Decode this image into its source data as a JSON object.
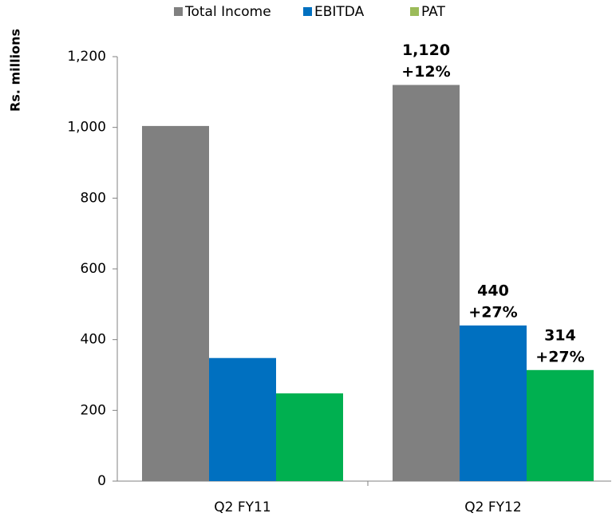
{
  "chart_data": {
    "type": "bar",
    "y_axis_label": "Rs. millions",
    "categories": [
      "Q2 FY11",
      "Q2 FY12"
    ],
    "series": [
      {
        "name": "Total Income",
        "color": "#808080",
        "values": [
          1004,
          1120
        ],
        "value_labels": [
          null,
          "1,120"
        ],
        "change_labels": [
          null,
          "+12%"
        ]
      },
      {
        "name": "EBITDA",
        "color": "#0070c0",
        "values": [
          348,
          440
        ],
        "value_labels": [
          null,
          "440"
        ],
        "change_labels": [
          null,
          "+27%"
        ]
      },
      {
        "name": "PAT",
        "color": "#00b050",
        "legend_color": "#9bbb59",
        "values": [
          248,
          314
        ],
        "value_labels": [
          null,
          "314"
        ],
        "change_labels": [
          null,
          "+27%"
        ]
      }
    ],
    "ylim": [
      0,
      1200
    ],
    "yticks": [
      0,
      200,
      400,
      600,
      800,
      {
        "value": 1000,
        "label": "1,000"
      },
      {
        "value": 1200,
        "label": "1,200"
      }
    ],
    "legend": "top"
  }
}
